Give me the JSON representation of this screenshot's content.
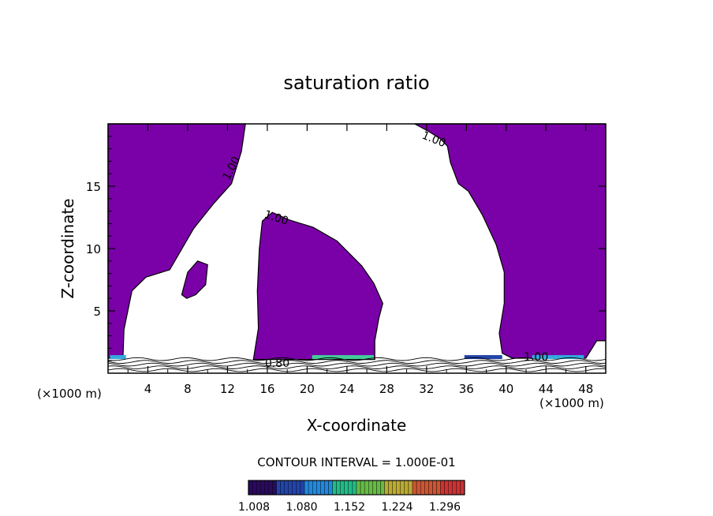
{
  "chart_data": {
    "type": "contour",
    "title": "saturation ratio",
    "xlabel": "X-coordinate",
    "ylabel": "Z-coordinate",
    "x_unit_left": "(×1000 m)",
    "x_unit_right": "(×1000 m)",
    "xlim": [
      0,
      50
    ],
    "ylim": [
      0,
      20
    ],
    "x_ticks": [
      {
        "value": 4,
        "label": "4"
      },
      {
        "value": 8,
        "label": "8"
      },
      {
        "value": 12,
        "label": "12"
      },
      {
        "value": 16,
        "label": "16"
      },
      {
        "value": 20,
        "label": "20"
      },
      {
        "value": 24,
        "label": "24"
      },
      {
        "value": 28,
        "label": "28"
      },
      {
        "value": 32,
        "label": "32"
      },
      {
        "value": 36,
        "label": "36"
      },
      {
        "value": 40,
        "label": "40"
      },
      {
        "value": 44,
        "label": "44"
      },
      {
        "value": 48,
        "label": "48"
      }
    ],
    "y_ticks": [
      {
        "value": 5,
        "label": "5"
      },
      {
        "value": 10,
        "label": "10"
      },
      {
        "value": 15,
        "label": "15"
      }
    ],
    "fill_color": "#7a00a8",
    "contour_labels": [
      {
        "text": "1.00",
        "x": 12.7,
        "y": 16.3,
        "angle": -62
      },
      {
        "text": "1.00",
        "x": 16.8,
        "y": 12.2,
        "angle": 18
      },
      {
        "text": "1.00",
        "x": 32.6,
        "y": 18.5,
        "angle": 22
      },
      {
        "text": "1.00",
        "x": 43.0,
        "y": 1.0,
        "angle": 0
      },
      {
        "text": "0.80",
        "x": 17.0,
        "y": 0.5,
        "angle": 0
      }
    ],
    "regions": [
      {
        "name": "left-upper",
        "boundary": [
          [
            0,
            20
          ],
          [
            13.8,
            20
          ],
          [
            13.4,
            17.8
          ],
          [
            12.4,
            15.2
          ],
          [
            10.6,
            13.6
          ],
          [
            8.6,
            11.6
          ],
          [
            6.2,
            8.3
          ],
          [
            3.8,
            7.7
          ],
          [
            2.4,
            6.6
          ],
          [
            1.6,
            3.5
          ],
          [
            1.5,
            1.2
          ],
          [
            0,
            1.2
          ]
        ]
      },
      {
        "name": "right-upper",
        "boundary": [
          [
            30.8,
            20
          ],
          [
            50,
            20
          ],
          [
            50,
            2.6
          ],
          [
            49.1,
            2.6
          ],
          [
            48,
            1.2
          ],
          [
            40.6,
            1.2
          ],
          [
            39.6,
            1.6
          ],
          [
            39.3,
            3.2
          ],
          [
            39.8,
            5.6
          ],
          [
            39.8,
            8.1
          ],
          [
            39.0,
            10.3
          ],
          [
            37.6,
            12.7
          ],
          [
            36.2,
            14.6
          ],
          [
            35.2,
            15.2
          ],
          [
            34.4,
            16.9
          ],
          [
            34.1,
            18.2
          ],
          [
            33.4,
            18.8
          ],
          [
            32.2,
            19.4
          ]
        ]
      },
      {
        "name": "central-dome",
        "boundary": [
          [
            14.6,
            1.1
          ],
          [
            15.1,
            3.6
          ],
          [
            15.0,
            6.6
          ],
          [
            15.2,
            10.0
          ],
          [
            15.5,
            12.2
          ],
          [
            16.5,
            12.9
          ],
          [
            18.2,
            12.3
          ],
          [
            20.6,
            11.7
          ],
          [
            23.0,
            10.6
          ],
          [
            25.5,
            8.6
          ],
          [
            26.7,
            7.2
          ],
          [
            27.6,
            5.6
          ],
          [
            27.2,
            4.4
          ],
          [
            26.8,
            2.6
          ],
          [
            26.8,
            1.1
          ]
        ]
      },
      {
        "name": "small-blob",
        "boundary": [
          [
            7.4,
            6.3
          ],
          [
            8.0,
            8.1
          ],
          [
            9.0,
            9.0
          ],
          [
            10.0,
            8.7
          ],
          [
            9.8,
            7.1
          ],
          [
            8.8,
            6.3
          ],
          [
            7.9,
            6.0
          ]
        ]
      }
    ],
    "colorbar": {
      "title": "CONTOUR INTERVAL = 1.000E-01",
      "labels": [
        "1.008",
        "1.080",
        "1.152",
        "1.224",
        "1.296"
      ],
      "colors": [
        "#2a0a5e",
        "#2244aa",
        "#2288dd",
        "#22bb88",
        "#66bb44",
        "#bbaa33",
        "#cc5533",
        "#cc3333"
      ]
    }
  }
}
